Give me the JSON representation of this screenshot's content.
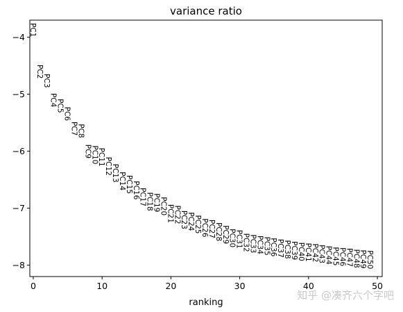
{
  "chart_data": {
    "type": "scatter",
    "title": "variance ratio",
    "xlabel": "ranking",
    "ylabel": "",
    "xlim": [
      -0.5,
      50.7
    ],
    "ylim": [
      -8.2,
      -3.7
    ],
    "xticks": [
      0,
      10,
      20,
      30,
      40,
      50
    ],
    "yticks": [
      -4,
      -5,
      -6,
      -7,
      -8
    ],
    "xtick_labels": [
      "0",
      "10",
      "20",
      "30",
      "40",
      "50"
    ],
    "ytick_labels": [
      "−4",
      "−5",
      "−6",
      "−7",
      "−8"
    ],
    "grid": false,
    "points": [
      {
        "label": "PC1",
        "x": 0,
        "y": -3.75
      },
      {
        "label": "PC2",
        "x": 1,
        "y": -4.48
      },
      {
        "label": "PC3",
        "x": 2,
        "y": -4.64
      },
      {
        "label": "PC4",
        "x": 3,
        "y": -4.98
      },
      {
        "label": "PC5",
        "x": 4,
        "y": -5.08
      },
      {
        "label": "PC6",
        "x": 5,
        "y": -5.22
      },
      {
        "label": "PC7",
        "x": 6,
        "y": -5.48
      },
      {
        "label": "PC8",
        "x": 7,
        "y": -5.52
      },
      {
        "label": "PC9",
        "x": 8,
        "y": -5.88
      },
      {
        "label": "PC10",
        "x": 9,
        "y": -5.9
      },
      {
        "label": "PC11",
        "x": 10,
        "y": -5.94
      },
      {
        "label": "PC12",
        "x": 11,
        "y": -6.1
      },
      {
        "label": "PC13",
        "x": 12,
        "y": -6.22
      },
      {
        "label": "PC14",
        "x": 13,
        "y": -6.36
      },
      {
        "label": "PC15",
        "x": 14,
        "y": -6.42
      },
      {
        "label": "PC16",
        "x": 15,
        "y": -6.52
      },
      {
        "label": "PC17",
        "x": 16,
        "y": -6.64
      },
      {
        "label": "PC18",
        "x": 17,
        "y": -6.72
      },
      {
        "label": "PC19",
        "x": 18,
        "y": -6.74
      },
      {
        "label": "PC20",
        "x": 19,
        "y": -6.8
      },
      {
        "label": "PC21",
        "x": 20,
        "y": -6.93
      },
      {
        "label": "PC22",
        "x": 21,
        "y": -6.95
      },
      {
        "label": "PC23",
        "x": 22,
        "y": -7.04
      },
      {
        "label": "PC24",
        "x": 23,
        "y": -7.07
      },
      {
        "label": "PC25",
        "x": 24,
        "y": -7.12
      },
      {
        "label": "PC26",
        "x": 25,
        "y": -7.18
      },
      {
        "label": "PC27",
        "x": 26,
        "y": -7.2
      },
      {
        "label": "PC28",
        "x": 27,
        "y": -7.25
      },
      {
        "label": "PC29",
        "x": 28,
        "y": -7.3
      },
      {
        "label": "PC30",
        "x": 29,
        "y": -7.36
      },
      {
        "label": "PC31",
        "x": 30,
        "y": -7.38
      },
      {
        "label": "PC32",
        "x": 31,
        "y": -7.44
      },
      {
        "label": "PC33",
        "x": 32,
        "y": -7.46
      },
      {
        "label": "PC34",
        "x": 33,
        "y": -7.48
      },
      {
        "label": "PC35",
        "x": 34,
        "y": -7.5
      },
      {
        "label": "PC36",
        "x": 35,
        "y": -7.52
      },
      {
        "label": "PC37",
        "x": 36,
        "y": -7.54
      },
      {
        "label": "PC38",
        "x": 37,
        "y": -7.56
      },
      {
        "label": "PC39",
        "x": 38,
        "y": -7.58
      },
      {
        "label": "PC40",
        "x": 39,
        "y": -7.6
      },
      {
        "label": "PC41",
        "x": 40,
        "y": -7.61
      },
      {
        "label": "PC42",
        "x": 41,
        "y": -7.62
      },
      {
        "label": "PC43",
        "x": 42,
        "y": -7.64
      },
      {
        "label": "PC44",
        "x": 43,
        "y": -7.66
      },
      {
        "label": "PC45",
        "x": 44,
        "y": -7.68
      },
      {
        "label": "PC46",
        "x": 45,
        "y": -7.69
      },
      {
        "label": "PC47",
        "x": 46,
        "y": -7.7
      },
      {
        "label": "PC48",
        "x": 47,
        "y": -7.72
      },
      {
        "label": "PC49",
        "x": 48,
        "y": -7.73
      },
      {
        "label": "PC50",
        "x": 49,
        "y": -7.74
      }
    ]
  },
  "watermark": "知乎 @凑齐六个字吧"
}
